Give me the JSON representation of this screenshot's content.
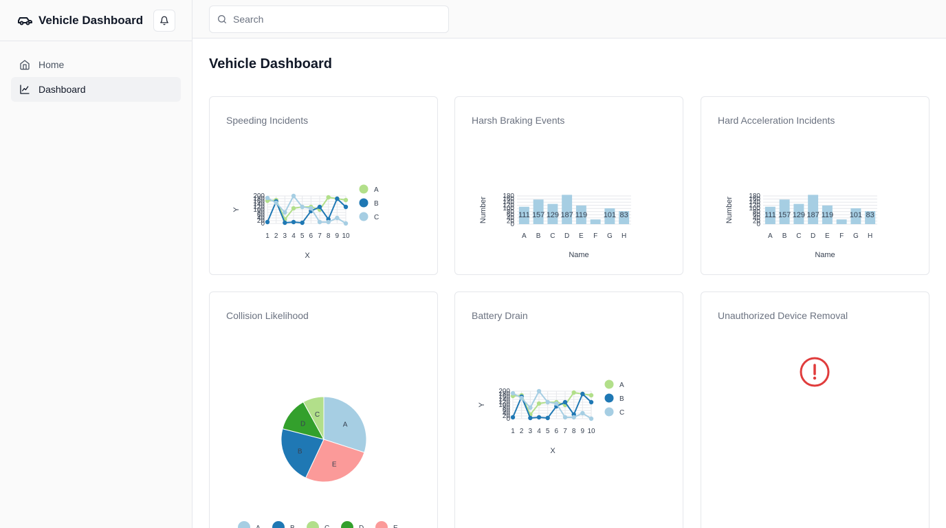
{
  "app": {
    "title": "Vehicle Dashboard"
  },
  "sidebar": {
    "items": [
      {
        "label": "Home",
        "active": false
      },
      {
        "label": "Dashboard",
        "active": true
      }
    ]
  },
  "search": {
    "placeholder": "Search"
  },
  "page": {
    "title": "Vehicle Dashboard"
  },
  "colors": {
    "light_blue": "#a6cee3",
    "blue": "#1f78b4",
    "light_green": "#b2df8a",
    "green": "#33a02c",
    "pink": "#fb9a99",
    "alert_red": "#e03c3c"
  },
  "cards": [
    {
      "id": "speeding",
      "title": "Speeding Incidents"
    },
    {
      "id": "braking",
      "title": "Harsh Braking Events"
    },
    {
      "id": "acceleration",
      "title": "Hard Acceleration Incidents"
    },
    {
      "id": "collision",
      "title": "Collision Likelihood"
    },
    {
      "id": "battery",
      "title": "Battery Drain"
    },
    {
      "id": "unauthorized",
      "title": "Unauthorized Device Removal",
      "status_icon": "alert-circle-icon"
    }
  ],
  "chart_data": [
    {
      "card": "speeding",
      "type": "line",
      "x": [
        1,
        2,
        3,
        4,
        5,
        6,
        7,
        8,
        9,
        10
      ],
      "xlabel": "X",
      "ylabel": "Y",
      "yticks": [
        0,
        20,
        40,
        60,
        80,
        100,
        120,
        140,
        160,
        180,
        200
      ],
      "ylim": [
        0,
        200
      ],
      "series": [
        {
          "name": "A",
          "color": "#b2df8a",
          "values": [
            165,
            170,
            30,
            110,
            120,
            120,
            100,
            190,
            180,
            170
          ]
        },
        {
          "name": "B",
          "color": "#1f78b4",
          "values": [
            10,
            160,
            5,
            10,
            5,
            90,
            120,
            30,
            180,
            120
          ]
        },
        {
          "name": "C",
          "color": "#a6cee3",
          "values": [
            185,
            150,
            80,
            200,
            120,
            110,
            10,
            10,
            40,
            0
          ]
        }
      ]
    },
    {
      "card": "braking",
      "type": "bar",
      "categories": [
        "A",
        "B",
        "C",
        "D",
        "E",
        "F",
        "G",
        "H"
      ],
      "values": [
        111,
        157,
        129,
        187,
        119,
        30,
        101,
        83
      ],
      "data_labels": [
        "111",
        "157",
        "129",
        "187",
        "119",
        "",
        "101",
        "83"
      ],
      "xlabel": "Name",
      "ylabel": "Number",
      "yticks": [
        0,
        20,
        40,
        60,
        80,
        100,
        120,
        140,
        160,
        180
      ],
      "ylim": [
        0,
        180
      ]
    },
    {
      "card": "acceleration",
      "type": "bar",
      "categories": [
        "A",
        "B",
        "C",
        "D",
        "E",
        "F",
        "G",
        "H"
      ],
      "values": [
        111,
        157,
        129,
        187,
        119,
        30,
        101,
        83
      ],
      "data_labels": [
        "111",
        "157",
        "129",
        "187",
        "119",
        "",
        "101",
        "83"
      ],
      "xlabel": "Name",
      "ylabel": "Number",
      "yticks": [
        0,
        20,
        40,
        60,
        80,
        100,
        120,
        140,
        160,
        180
      ],
      "ylim": [
        0,
        180
      ]
    },
    {
      "card": "collision",
      "type": "pie",
      "slices": [
        {
          "label": "A",
          "value": 30,
          "color": "#a6cee3"
        },
        {
          "label": "E",
          "value": 27,
          "color": "#fb9a99"
        },
        {
          "label": "B",
          "value": 22,
          "color": "#1f78b4"
        },
        {
          "label": "D",
          "value": 13,
          "color": "#33a02c"
        },
        {
          "label": "C",
          "value": 8,
          "color": "#b2df8a"
        }
      ],
      "legend": [
        "A",
        "B",
        "C",
        "D",
        "E"
      ]
    },
    {
      "card": "battery",
      "type": "line",
      "x": [
        1,
        2,
        3,
        4,
        5,
        6,
        7,
        8,
        9,
        10
      ],
      "xlabel": "X",
      "ylabel": "Y",
      "yticks": [
        0,
        20,
        40,
        60,
        80,
        100,
        120,
        140,
        160,
        180,
        200
      ],
      "ylim": [
        0,
        200
      ],
      "series": [
        {
          "name": "A",
          "color": "#b2df8a",
          "values": [
            165,
            170,
            30,
            110,
            120,
            120,
            100,
            190,
            180,
            170
          ]
        },
        {
          "name": "B",
          "color": "#1f78b4",
          "values": [
            10,
            160,
            5,
            10,
            5,
            90,
            120,
            30,
            180,
            120
          ]
        },
        {
          "name": "C",
          "color": "#a6cee3",
          "values": [
            185,
            150,
            80,
            200,
            120,
            110,
            10,
            10,
            40,
            0
          ]
        }
      ]
    }
  ]
}
